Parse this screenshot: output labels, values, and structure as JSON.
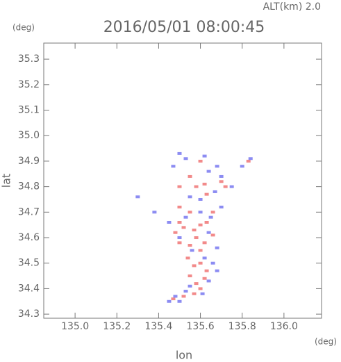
{
  "chart_data": {
    "type": "scatter",
    "title": "2016/05/01 08:00:45",
    "subtitle": "ALT(km) 2.0",
    "y_unit": "(deg)",
    "x_unit": "(deg)",
    "xlabel": "lon",
    "ylabel": "lat",
    "xlim": [
      134.85,
      136.18
    ],
    "ylim": [
      34.284,
      35.363
    ],
    "xticks": [
      {
        "value": 135,
        "label": "135.0"
      },
      135.2,
      135.4,
      135.6,
      135.8,
      {
        "value": 136,
        "label": "136.0"
      }
    ],
    "yticks": [
      34.3,
      34.4,
      34.5,
      34.6,
      34.7,
      34.8,
      34.9,
      {
        "value": 35,
        "label": "35.0"
      },
      35.1,
      35.2,
      35.3
    ],
    "series": [
      {
        "color": "#f28a8a",
        "x": [
          135.6,
          135.62,
          135.63,
          135.55,
          135.58,
          135.5,
          135.55,
          135.5,
          135.52,
          135.57,
          135.6,
          135.63,
          135.48,
          135.5,
          135.55,
          135.58,
          135.62,
          135.6,
          135.54,
          135.57,
          135.6,
          135.63,
          135.55,
          135.58,
          135.6,
          135.62,
          135.52,
          135.57,
          135.47,
          135.66,
          135.66,
          135.7,
          135.72,
          135.83,
          135.5
        ],
        "values": [
          34.9,
          34.81,
          34.77,
          34.84,
          34.8,
          34.72,
          34.7,
          34.66,
          34.64,
          34.63,
          34.65,
          34.66,
          34.62,
          34.58,
          34.57,
          34.6,
          34.58,
          34.55,
          34.52,
          34.49,
          34.5,
          34.47,
          34.45,
          34.42,
          34.4,
          34.44,
          34.37,
          34.38,
          34.36,
          34.61,
          34.7,
          34.82,
          34.8,
          34.9,
          34.8
        ]
      },
      {
        "color": "#8c8cf2",
        "x": [
          135.5,
          135.47,
          135.53,
          135.62,
          135.64,
          135.68,
          135.7,
          135.67,
          135.8,
          135.84,
          135.75,
          135.3,
          135.38,
          135.45,
          135.53,
          135.6,
          135.65,
          135.64,
          135.68,
          135.5,
          135.56,
          135.62,
          135.66,
          135.68,
          135.64,
          135.55,
          135.53,
          135.48,
          135.5,
          135.61,
          135.45,
          135.6,
          135.55,
          135.7
        ],
        "values": [
          34.93,
          34.88,
          34.91,
          34.92,
          34.86,
          34.88,
          34.84,
          34.78,
          34.88,
          34.91,
          34.8,
          34.76,
          34.7,
          34.66,
          34.68,
          34.7,
          34.68,
          34.62,
          34.56,
          34.6,
          34.55,
          34.52,
          34.5,
          34.47,
          34.43,
          34.41,
          34.39,
          34.37,
          34.35,
          34.38,
          34.35,
          34.75,
          34.76,
          34.72
        ]
      }
    ]
  }
}
